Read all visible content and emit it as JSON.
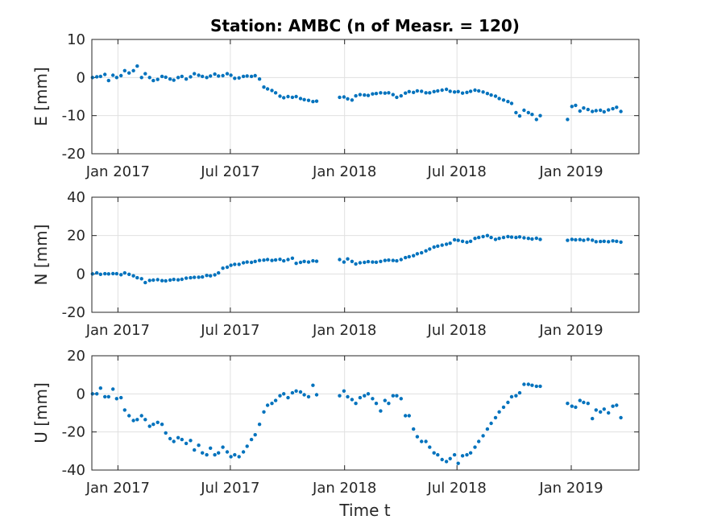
{
  "chart_data": {
    "type": "scatter",
    "title": "Station: AMBC (n of Measr. = 120)",
    "xlabel": "Time t",
    "x_tick_labels": [
      "Jan 2017",
      "Jul 2017",
      "Jan 2018",
      "Jul 2018",
      "Jan 2019"
    ],
    "x_tick_dates": [
      "2017-01-01",
      "2017-07-01",
      "2018-01-01",
      "2018-07-01",
      "2019-01-01"
    ],
    "xlim": [
      "2016-11-20",
      "2019-04-20"
    ],
    "marker_color": "#0072BD",
    "grid": true,
    "panels": [
      {
        "ylabel": "E [mm]",
        "ylim": [
          -20,
          10
        ],
        "yticks": [
          -20,
          -10,
          0,
          10
        ],
        "ytick_labels": [
          "-20",
          "-10",
          "0",
          "10"
        ],
        "x": [
          "2016-11-21",
          "2016-11-28",
          "2016-12-04",
          "2016-12-11",
          "2016-12-17",
          "2016-12-24",
          "2016-12-30",
          "2017-01-06",
          "2017-01-12",
          "2017-01-19",
          "2017-01-26",
          "2017-02-01",
          "2017-02-08",
          "2017-02-14",
          "2017-02-21",
          "2017-02-27",
          "2017-03-06",
          "2017-03-13",
          "2017-03-19",
          "2017-03-26",
          "2017-04-01",
          "2017-04-08",
          "2017-04-14",
          "2017-04-21",
          "2017-04-28",
          "2017-05-04",
          "2017-05-11",
          "2017-05-17",
          "2017-05-24",
          "2017-05-30",
          "2017-06-06",
          "2017-06-12",
          "2017-06-19",
          "2017-06-26",
          "2017-07-02",
          "2017-07-08",
          "2017-07-15",
          "2017-07-22",
          "2017-07-28",
          "2017-08-04",
          "2017-08-10",
          "2017-08-17",
          "2017-08-24",
          "2017-08-30",
          "2017-09-06",
          "2017-09-12",
          "2017-09-19",
          "2017-09-25",
          "2017-10-02",
          "2017-10-09",
          "2017-10-15",
          "2017-10-22",
          "2017-10-28",
          "2017-11-04",
          "2017-11-11",
          "2017-11-17",
          "2017-12-24",
          "2017-12-31",
          "2018-01-06",
          "2018-01-13",
          "2018-01-19",
          "2018-01-26",
          "2018-02-02",
          "2018-02-08",
          "2018-02-15",
          "2018-02-21",
          "2018-02-28",
          "2018-03-07",
          "2018-03-13",
          "2018-03-20",
          "2018-03-26",
          "2018-04-02",
          "2018-04-09",
          "2018-04-15",
          "2018-04-22",
          "2018-04-28",
          "2018-05-05",
          "2018-05-12",
          "2018-05-18",
          "2018-05-25",
          "2018-05-31",
          "2018-06-07",
          "2018-06-14",
          "2018-06-20",
          "2018-06-27",
          "2018-07-03",
          "2018-07-10",
          "2018-07-17",
          "2018-07-23",
          "2018-07-30",
          "2018-08-05",
          "2018-08-12",
          "2018-08-19",
          "2018-08-25",
          "2018-09-01",
          "2018-09-07",
          "2018-09-14",
          "2018-09-21",
          "2018-09-27",
          "2018-10-04",
          "2018-10-10",
          "2018-10-17",
          "2018-10-24",
          "2018-10-30",
          "2018-11-06",
          "2018-11-12",
          "2018-12-26",
          "2019-01-02",
          "2019-01-08",
          "2019-01-15",
          "2019-01-21",
          "2019-01-28",
          "2019-02-04",
          "2019-02-10",
          "2019-02-17",
          "2019-02-23",
          "2019-03-02",
          "2019-03-09",
          "2019-03-15",
          "2019-03-22"
        ],
        "y": [
          0.0,
          0.2,
          0.3,
          0.8,
          -0.8,
          0.6,
          0.0,
          0.5,
          1.8,
          1.2,
          1.8,
          3.0,
          0.0,
          1.0,
          0.0,
          -0.8,
          -0.5,
          0.3,
          0.1,
          -0.4,
          -0.7,
          0.0,
          0.3,
          -0.4,
          0.2,
          1.0,
          0.6,
          0.3,
          0.0,
          0.4,
          0.9,
          0.4,
          0.5,
          1.0,
          0.6,
          -0.2,
          -0.1,
          0.3,
          0.4,
          0.3,
          0.5,
          -0.4,
          -2.5,
          -3.0,
          -3.4,
          -4.0,
          -4.9,
          -5.3,
          -5.0,
          -5.2,
          -5.0,
          -5.5,
          -5.8,
          -6.0,
          -6.3,
          -6.2,
          -5.2,
          -5.1,
          -5.6,
          -5.9,
          -4.8,
          -4.5,
          -4.6,
          -4.7,
          -4.3,
          -4.2,
          -4.0,
          -4.1,
          -4.0,
          -4.5,
          -5.2,
          -4.8,
          -4.1,
          -3.7,
          -3.9,
          -3.5,
          -3.6,
          -4.0,
          -4.0,
          -3.7,
          -3.5,
          -3.3,
          -3.1,
          -3.6,
          -3.8,
          -3.7,
          -4.1,
          -3.9,
          -3.6,
          -3.3,
          -3.5,
          -3.8,
          -4.2,
          -4.6,
          -4.9,
          -5.5,
          -5.9,
          -6.3,
          -6.8,
          -9.2,
          -10.1,
          -8.6,
          -9.2,
          -9.7,
          -11.0,
          -10.0,
          -11.0,
          -7.6,
          -7.3,
          -8.8,
          -8.0,
          -8.4,
          -8.9,
          -8.7,
          -8.6,
          -9.0,
          -8.5,
          -8.2,
          -7.8,
          -8.9
        ]
      },
      {
        "ylabel": "N [mm]",
        "ylim": [
          -20,
          40
        ],
        "yticks": [
          -20,
          0,
          20,
          40
        ],
        "ytick_labels": [
          "-20",
          "0",
          "20",
          "40"
        ],
        "x": [
          "2016-11-21",
          "2016-11-28",
          "2016-12-04",
          "2016-12-11",
          "2016-12-17",
          "2016-12-24",
          "2016-12-30",
          "2017-01-06",
          "2017-01-12",
          "2017-01-19",
          "2017-01-26",
          "2017-02-01",
          "2017-02-08",
          "2017-02-14",
          "2017-02-21",
          "2017-02-27",
          "2017-03-06",
          "2017-03-13",
          "2017-03-19",
          "2017-03-26",
          "2017-04-01",
          "2017-04-08",
          "2017-04-14",
          "2017-04-21",
          "2017-04-28",
          "2017-05-04",
          "2017-05-11",
          "2017-05-17",
          "2017-05-24",
          "2017-05-30",
          "2017-06-06",
          "2017-06-12",
          "2017-06-19",
          "2017-06-26",
          "2017-07-02",
          "2017-07-08",
          "2017-07-15",
          "2017-07-22",
          "2017-07-28",
          "2017-08-04",
          "2017-08-10",
          "2017-08-17",
          "2017-08-24",
          "2017-08-30",
          "2017-09-06",
          "2017-09-12",
          "2017-09-19",
          "2017-09-25",
          "2017-10-02",
          "2017-10-09",
          "2017-10-15",
          "2017-10-22",
          "2017-10-28",
          "2017-11-04",
          "2017-11-11",
          "2017-11-17",
          "2017-12-24",
          "2017-12-31",
          "2018-01-06",
          "2018-01-13",
          "2018-01-19",
          "2018-01-26",
          "2018-02-02",
          "2018-02-08",
          "2018-02-15",
          "2018-02-21",
          "2018-02-28",
          "2018-03-07",
          "2018-03-13",
          "2018-03-20",
          "2018-03-26",
          "2018-04-02",
          "2018-04-09",
          "2018-04-15",
          "2018-04-22",
          "2018-04-28",
          "2018-05-05",
          "2018-05-12",
          "2018-05-18",
          "2018-05-25",
          "2018-05-31",
          "2018-06-07",
          "2018-06-14",
          "2018-06-20",
          "2018-06-27",
          "2018-07-03",
          "2018-07-10",
          "2018-07-17",
          "2018-07-23",
          "2018-07-30",
          "2018-08-05",
          "2018-08-12",
          "2018-08-19",
          "2018-08-25",
          "2018-09-01",
          "2018-09-07",
          "2018-09-14",
          "2018-09-21",
          "2018-09-27",
          "2018-10-04",
          "2018-10-10",
          "2018-10-17",
          "2018-10-24",
          "2018-10-30",
          "2018-11-06",
          "2018-11-12",
          "2018-12-26",
          "2019-01-02",
          "2019-01-08",
          "2019-01-15",
          "2019-01-21",
          "2019-01-28",
          "2019-02-04",
          "2019-02-10",
          "2019-02-17",
          "2019-02-23",
          "2019-03-02",
          "2019-03-09",
          "2019-03-15",
          "2019-03-22"
        ],
        "y": [
          0.0,
          0.5,
          -0.2,
          0.1,
          0.0,
          0.2,
          0.1,
          -0.4,
          0.5,
          -0.2,
          -1.0,
          -2.0,
          -2.5,
          -4.5,
          -3.4,
          -3.2,
          -3.0,
          -3.5,
          -3.6,
          -3.2,
          -2.9,
          -3.1,
          -2.8,
          -2.2,
          -2.0,
          -1.8,
          -1.7,
          -1.6,
          -0.8,
          -1.0,
          -0.5,
          0.5,
          3.0,
          3.5,
          4.5,
          5.0,
          5.0,
          5.8,
          6.2,
          6.0,
          6.5,
          7.0,
          7.2,
          7.5,
          7.0,
          7.3,
          7.6,
          6.8,
          7.5,
          8.2,
          5.5,
          6.0,
          6.5,
          6.2,
          6.8,
          6.6,
          7.5,
          6.2,
          7.8,
          6.5,
          5.2,
          5.8,
          6.0,
          6.4,
          6.2,
          6.1,
          6.5,
          7.0,
          7.2,
          7.0,
          6.8,
          7.5,
          8.5,
          9.0,
          9.5,
          10.5,
          11.0,
          12.0,
          13.0,
          14.0,
          14.5,
          15.0,
          15.5,
          16.0,
          17.8,
          17.5,
          17.0,
          16.5,
          17.0,
          18.5,
          19.0,
          19.5,
          20.0,
          19.0,
          18.0,
          18.5,
          19.0,
          19.5,
          19.2,
          19.0,
          19.3,
          18.8,
          18.5,
          18.2,
          18.6,
          18.0,
          17.5,
          18.0,
          17.8,
          17.9,
          17.5,
          18.0,
          17.6,
          16.8,
          16.9,
          17.0,
          16.8,
          17.2,
          17.0,
          16.6
        ]
      },
      {
        "ylabel": "U [mm]",
        "ylim": [
          -40,
          20
        ],
        "yticks": [
          -40,
          -20,
          0,
          20
        ],
        "ytick_labels": [
          "-40",
          "-20",
          "0",
          "20"
        ],
        "x": [
          "2016-11-21",
          "2016-11-28",
          "2016-12-04",
          "2016-12-11",
          "2016-12-17",
          "2016-12-24",
          "2016-12-30",
          "2017-01-06",
          "2017-01-12",
          "2017-01-19",
          "2017-01-26",
          "2017-02-01",
          "2017-02-08",
          "2017-02-14",
          "2017-02-21",
          "2017-02-27",
          "2017-03-06",
          "2017-03-13",
          "2017-03-19",
          "2017-03-26",
          "2017-04-01",
          "2017-04-08",
          "2017-04-14",
          "2017-04-21",
          "2017-04-28",
          "2017-05-04",
          "2017-05-11",
          "2017-05-17",
          "2017-05-24",
          "2017-05-30",
          "2017-06-06",
          "2017-06-12",
          "2017-06-19",
          "2017-06-26",
          "2017-07-02",
          "2017-07-08",
          "2017-07-15",
          "2017-07-22",
          "2017-07-28",
          "2017-08-04",
          "2017-08-10",
          "2017-08-17",
          "2017-08-24",
          "2017-08-30",
          "2017-09-06",
          "2017-09-12",
          "2017-09-19",
          "2017-09-25",
          "2017-10-02",
          "2017-10-09",
          "2017-10-15",
          "2017-10-22",
          "2017-10-28",
          "2017-11-04",
          "2017-11-11",
          "2017-11-17",
          "2017-12-24",
          "2017-12-31",
          "2018-01-06",
          "2018-01-13",
          "2018-01-19",
          "2018-01-26",
          "2018-02-02",
          "2018-02-08",
          "2018-02-15",
          "2018-02-21",
          "2018-02-28",
          "2018-03-07",
          "2018-03-13",
          "2018-03-20",
          "2018-03-26",
          "2018-04-02",
          "2018-04-09",
          "2018-04-15",
          "2018-04-22",
          "2018-04-28",
          "2018-05-05",
          "2018-05-12",
          "2018-05-18",
          "2018-05-25",
          "2018-05-31",
          "2018-06-07",
          "2018-06-14",
          "2018-06-20",
          "2018-06-27",
          "2018-07-03",
          "2018-07-10",
          "2018-07-17",
          "2018-07-23",
          "2018-07-30",
          "2018-08-05",
          "2018-08-12",
          "2018-08-19",
          "2018-08-25",
          "2018-09-01",
          "2018-09-07",
          "2018-09-14",
          "2018-09-21",
          "2018-09-27",
          "2018-10-04",
          "2018-10-10",
          "2018-10-17",
          "2018-10-24",
          "2018-10-30",
          "2018-11-06",
          "2018-11-12",
          "2018-12-26",
          "2019-01-02",
          "2019-01-08",
          "2019-01-15",
          "2019-01-21",
          "2019-01-28",
          "2019-02-04",
          "2019-02-10",
          "2019-02-17",
          "2019-02-23",
          "2019-03-02",
          "2019-03-09",
          "2019-03-15",
          "2019-03-22"
        ],
        "y": [
          0.0,
          0.0,
          3.0,
          -1.5,
          -1.5,
          2.5,
          -2.5,
          -2.0,
          -8.5,
          -11.5,
          -14.0,
          -13.5,
          -11.5,
          -13.5,
          -17.0,
          -16.0,
          -15.0,
          -16.0,
          -20.5,
          -23.5,
          -25.0,
          -23.0,
          -24.0,
          -26.0,
          -24.5,
          -29.5,
          -27.0,
          -31.0,
          -32.0,
          -28.5,
          -32.0,
          -31.0,
          -28.0,
          -30.5,
          -33.0,
          -32.0,
          -33.0,
          -30.5,
          -27.5,
          -24.0,
          -21.5,
          -16.0,
          -9.5,
          -6.0,
          -5.0,
          -3.5,
          -1.0,
          0.0,
          -2.0,
          0.5,
          1.5,
          1.0,
          -0.5,
          -1.5,
          4.5,
          -0.5,
          -1.0,
          1.5,
          -1.5,
          -3.0,
          -5.0,
          -2.0,
          -1.0,
          0.0,
          -2.5,
          -5.0,
          -9.0,
          -3.5,
          -5.0,
          -1.0,
          -1.0,
          -2.5,
          -11.5,
          -11.5,
          -18.5,
          -22.5,
          -25.0,
          -25.0,
          -28.0,
          -31.0,
          -32.0,
          -34.5,
          -35.5,
          -34.0,
          -32.0,
          -36.5,
          -32.5,
          -32.0,
          -31.0,
          -28.0,
          -25.0,
          -22.0,
          -18.5,
          -15.5,
          -12.5,
          -9.5,
          -7.0,
          -4.5,
          -1.5,
          -1.0,
          0.5,
          5.0,
          5.0,
          4.5,
          4.0,
          4.0,
          -5.0,
          -6.5,
          -7.0,
          -3.5,
          -4.5,
          -5.0,
          -13.0,
          -8.5,
          -9.5,
          -8.0,
          -10.0,
          -6.5,
          -6.0,
          -12.5
        ]
      }
    ]
  }
}
